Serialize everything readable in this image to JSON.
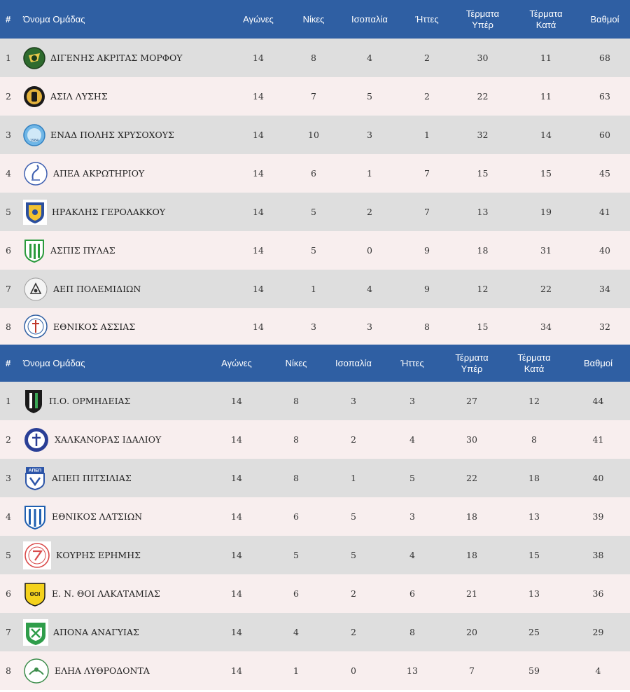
{
  "tables": [
    {
      "headers": {
        "pos": "#",
        "team": "Όνομα Ομάδας",
        "played": "Αγώνες",
        "wins": "Νίκες",
        "draws": "Ισοπαλία",
        "losses": "Ήττες",
        "gf_line1": "Τέρματα",
        "gf_line2": "Υπέρ",
        "ga_line1": "Τέρματα",
        "ga_line2": "Κατά",
        "points": "Βαθμοί"
      },
      "rows": [
        {
          "pos": "1",
          "team": "ΔΙΓΕΝΗΣ ΑΚΡΙΤΑΣ ΜΟΡΦΟΥ",
          "logo": "digenis-crest",
          "played": "14",
          "wins": "8",
          "draws": "4",
          "losses": "2",
          "gf": "30",
          "ga": "11",
          "points": "68"
        },
        {
          "pos": "2",
          "team": "ΑΣΙΛ ΛΥΣΗΣ",
          "logo": "asil-crest",
          "played": "14",
          "wins": "7",
          "draws": "5",
          "losses": "2",
          "gf": "22",
          "ga": "11",
          "points": "63"
        },
        {
          "pos": "3",
          "team": "ΕΝΑΔ ΠΟΛΗΣ ΧΡΥΣΟΧΟΥΣ",
          "logo": "enad-crest",
          "logo_text": "1984",
          "played": "14",
          "wins": "10",
          "draws": "3",
          "losses": "1",
          "gf": "32",
          "ga": "14",
          "points": "60"
        },
        {
          "pos": "4",
          "team": "ΑΠΕΑ ΑΚΡΩΤΗΡΙΟΥ",
          "logo": "apea-crest",
          "played": "14",
          "wins": "6",
          "draws": "1",
          "losses": "7",
          "gf": "15",
          "ga": "15",
          "points": "45"
        },
        {
          "pos": "5",
          "team": "ΗΡΑΚΛΗΣ ΓΕΡΟΛΑΚΚΟΥ",
          "logo": "iraklis-crest",
          "played": "14",
          "wins": "5",
          "draws": "2",
          "losses": "7",
          "gf": "13",
          "ga": "19",
          "points": "41"
        },
        {
          "pos": "6",
          "team": "ΑΣΠΙΣ ΠΥΛΑΣ",
          "logo": "aspis-crest",
          "played": "14",
          "wins": "5",
          "draws": "0",
          "losses": "9",
          "gf": "18",
          "ga": "31",
          "points": "40"
        },
        {
          "pos": "7",
          "team": "ΑΕΠ ΠΟΛΕΜΙΔΙΩΝ",
          "logo": "aep-crest",
          "played": "14",
          "wins": "1",
          "draws": "4",
          "losses": "9",
          "gf": "12",
          "ga": "22",
          "points": "34"
        },
        {
          "pos": "8",
          "team": "ΕΘΝΙΚΟΣ ΑΣΣΙΑΣ",
          "logo": "ethnikos-assias-crest",
          "played": "14",
          "wins": "3",
          "draws": "3",
          "losses": "8",
          "gf": "15",
          "ga": "34",
          "points": "32"
        }
      ]
    },
    {
      "headers": {
        "pos": "#",
        "team": "Όνομα Ομάδας",
        "played": "Αγώνες",
        "wins": "Νίκες",
        "draws": "Ισοπαλία",
        "losses": "Ήττες",
        "gf_line1": "Τέρματα",
        "gf_line2": "Υπέρ",
        "ga_line1": "Τέρματα",
        "ga_line2": "Κατά",
        "points": "Βαθμοί"
      },
      "rows": [
        {
          "pos": "1",
          "team": "Π.Ο. ΟΡΜΗΔΕΙΑΣ",
          "logo": "ormideia-crest",
          "played": "14",
          "wins": "8",
          "draws": "3",
          "losses": "3",
          "gf": "27",
          "ga": "12",
          "points": "44"
        },
        {
          "pos": "2",
          "team": "ΧΑΛΚΑΝΟΡΑΣ ΙΔΑΛΙΟΥ",
          "logo": "chalkanoras-crest",
          "played": "14",
          "wins": "8",
          "draws": "2",
          "losses": "4",
          "gf": "30",
          "ga": "8",
          "points": "41"
        },
        {
          "pos": "3",
          "team": "ΑΠΕΠ ΠΙΤΣΙΛΙΑΣ",
          "logo": "apep-crest",
          "logo_text": "ΑΠΕΠ",
          "played": "14",
          "wins": "8",
          "draws": "1",
          "losses": "5",
          "gf": "22",
          "ga": "18",
          "points": "40"
        },
        {
          "pos": "4",
          "team": "ΕΘΝΙΚΟΣ ΛΑΤΣΙΩΝ",
          "logo": "ethnikos-latsion-crest",
          "played": "14",
          "wins": "6",
          "draws": "5",
          "losses": "3",
          "gf": "18",
          "ga": "13",
          "points": "39"
        },
        {
          "pos": "5",
          "team": "ΚΟΥΡΗΣ ΕΡΗΜΗΣ",
          "logo": "kouris-crest",
          "played": "14",
          "wins": "5",
          "draws": "5",
          "losses": "4",
          "gf": "18",
          "ga": "15",
          "points": "38"
        },
        {
          "pos": "6",
          "team": "Ε. Ν. ΘΟΙ ΛΑΚΑΤΑΜΙΑΣ",
          "logo": "thoi-crest",
          "logo_text": "ΘΟΙ",
          "played": "14",
          "wins": "6",
          "draws": "2",
          "losses": "6",
          "gf": "21",
          "ga": "13",
          "points": "36"
        },
        {
          "pos": "7",
          "team": "ΑΠΟΝΑ ΑΝΑΓΥΙΑΣ",
          "logo": "apona-crest",
          "played": "14",
          "wins": "4",
          "draws": "2",
          "losses": "8",
          "gf": "20",
          "ga": "25",
          "points": "29"
        },
        {
          "pos": "8",
          "team": "ΕΛΗΑ ΛΥΘΡΟΔΟΝΤΑ",
          "logo": "elia-crest",
          "played": "14",
          "wins": "1",
          "draws": "0",
          "losses": "13",
          "gf": "7",
          "ga": "59",
          "points": "4"
        }
      ]
    }
  ],
  "colors": {
    "header_bg": "#2f5fa3",
    "row_odd": "#dedede",
    "row_even": "#f8eeee"
  }
}
